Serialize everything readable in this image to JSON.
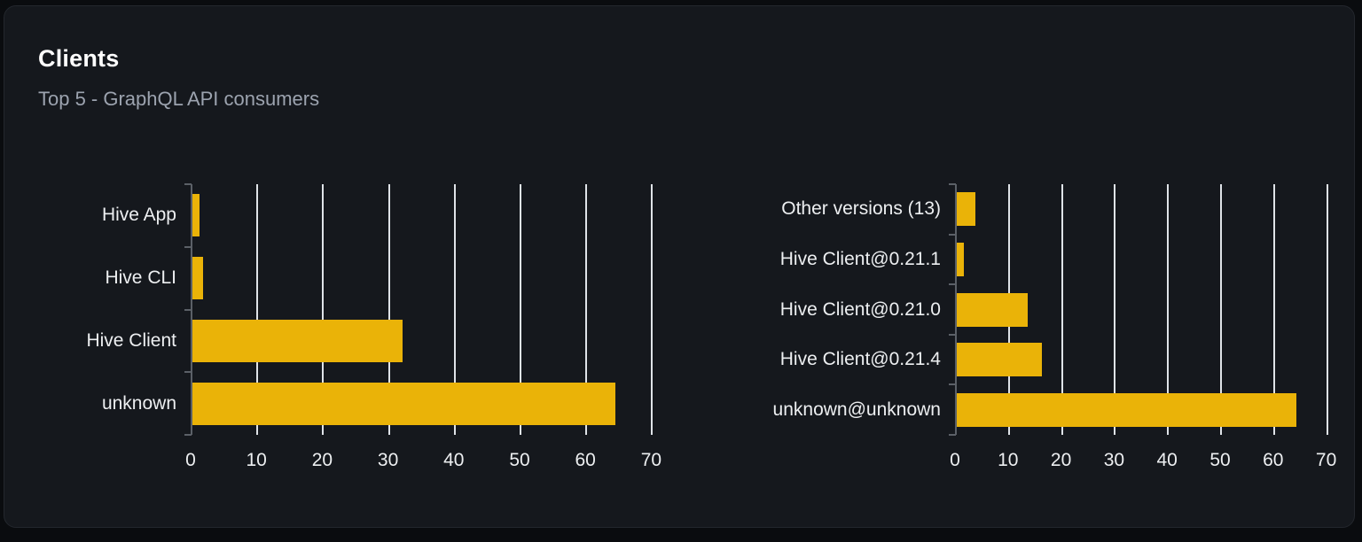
{
  "card": {
    "title": "Clients",
    "subtitle": "Top 5 - GraphQL API consumers"
  },
  "colors": {
    "bar": "#eab308",
    "card_background": "#15181d",
    "page_background": "#0a0c0f",
    "gridline": "#dfe3e8",
    "axis": "#5b6067",
    "title_text": "#ffffff",
    "subtitle_text": "#9ca3af",
    "label_text": "#edeff1"
  },
  "chart_data": [
    {
      "type": "bar",
      "orientation": "horizontal",
      "name": "clients-by-name",
      "categories": [
        "Hive App",
        "Hive CLI",
        "Hive Client",
        "unknown"
      ],
      "values": [
        1.3,
        1.9,
        32.2,
        64.6
      ],
      "xlim": [
        0,
        72
      ],
      "xticks": [
        0,
        10,
        20,
        30,
        40,
        50,
        60,
        70
      ],
      "grid": true,
      "legend": "none",
      "bar_color": "#eab308"
    },
    {
      "type": "bar",
      "orientation": "horizontal",
      "name": "clients-by-version",
      "categories": [
        "Other versions (13)",
        "Hive Client@0.21.1",
        "Hive Client@0.21.0",
        "Hive Client@0.21.4",
        "unknown@unknown"
      ],
      "values": [
        3.9,
        1.7,
        13.7,
        16.4,
        64.4
      ],
      "xlim": [
        0,
        72
      ],
      "xticks": [
        0,
        10,
        20,
        30,
        40,
        50,
        60,
        70
      ],
      "grid": true,
      "legend": "none",
      "bar_color": "#eab308"
    }
  ]
}
